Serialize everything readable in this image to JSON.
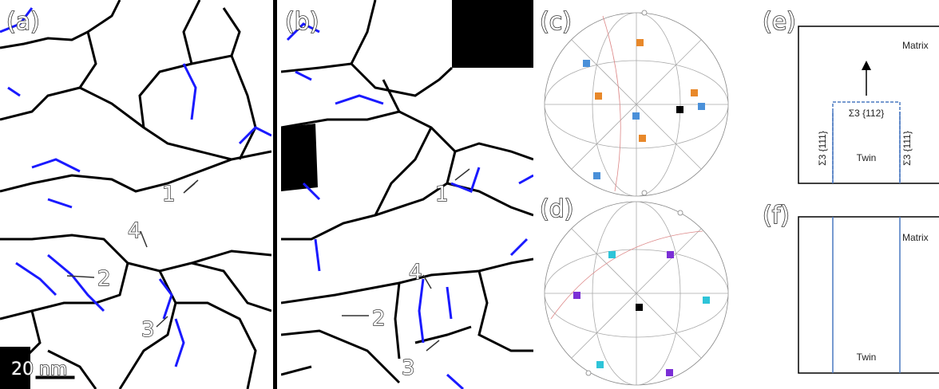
{
  "panel_a": {
    "label": "(a)",
    "arrows": [
      "1",
      "2",
      "3",
      "4"
    ],
    "scale_bar": "20 nm"
  },
  "panel_b": {
    "label": "(b)",
    "arrows": [
      "1",
      "2",
      "3",
      "4"
    ]
  },
  "panel_c": {
    "label": "(c)"
  },
  "panel_d": {
    "label": "(d)"
  },
  "panel_e": {
    "label": "(e)",
    "matrix": "Matrix",
    "interface_top": "Σ3 {112}",
    "interface_left": "Σ3 {111}",
    "interface_right": "Σ3 {111}",
    "twin": "Twin"
  },
  "panel_f": {
    "label": "(f)",
    "matrix": "Matrix",
    "twin": "Twin"
  }
}
